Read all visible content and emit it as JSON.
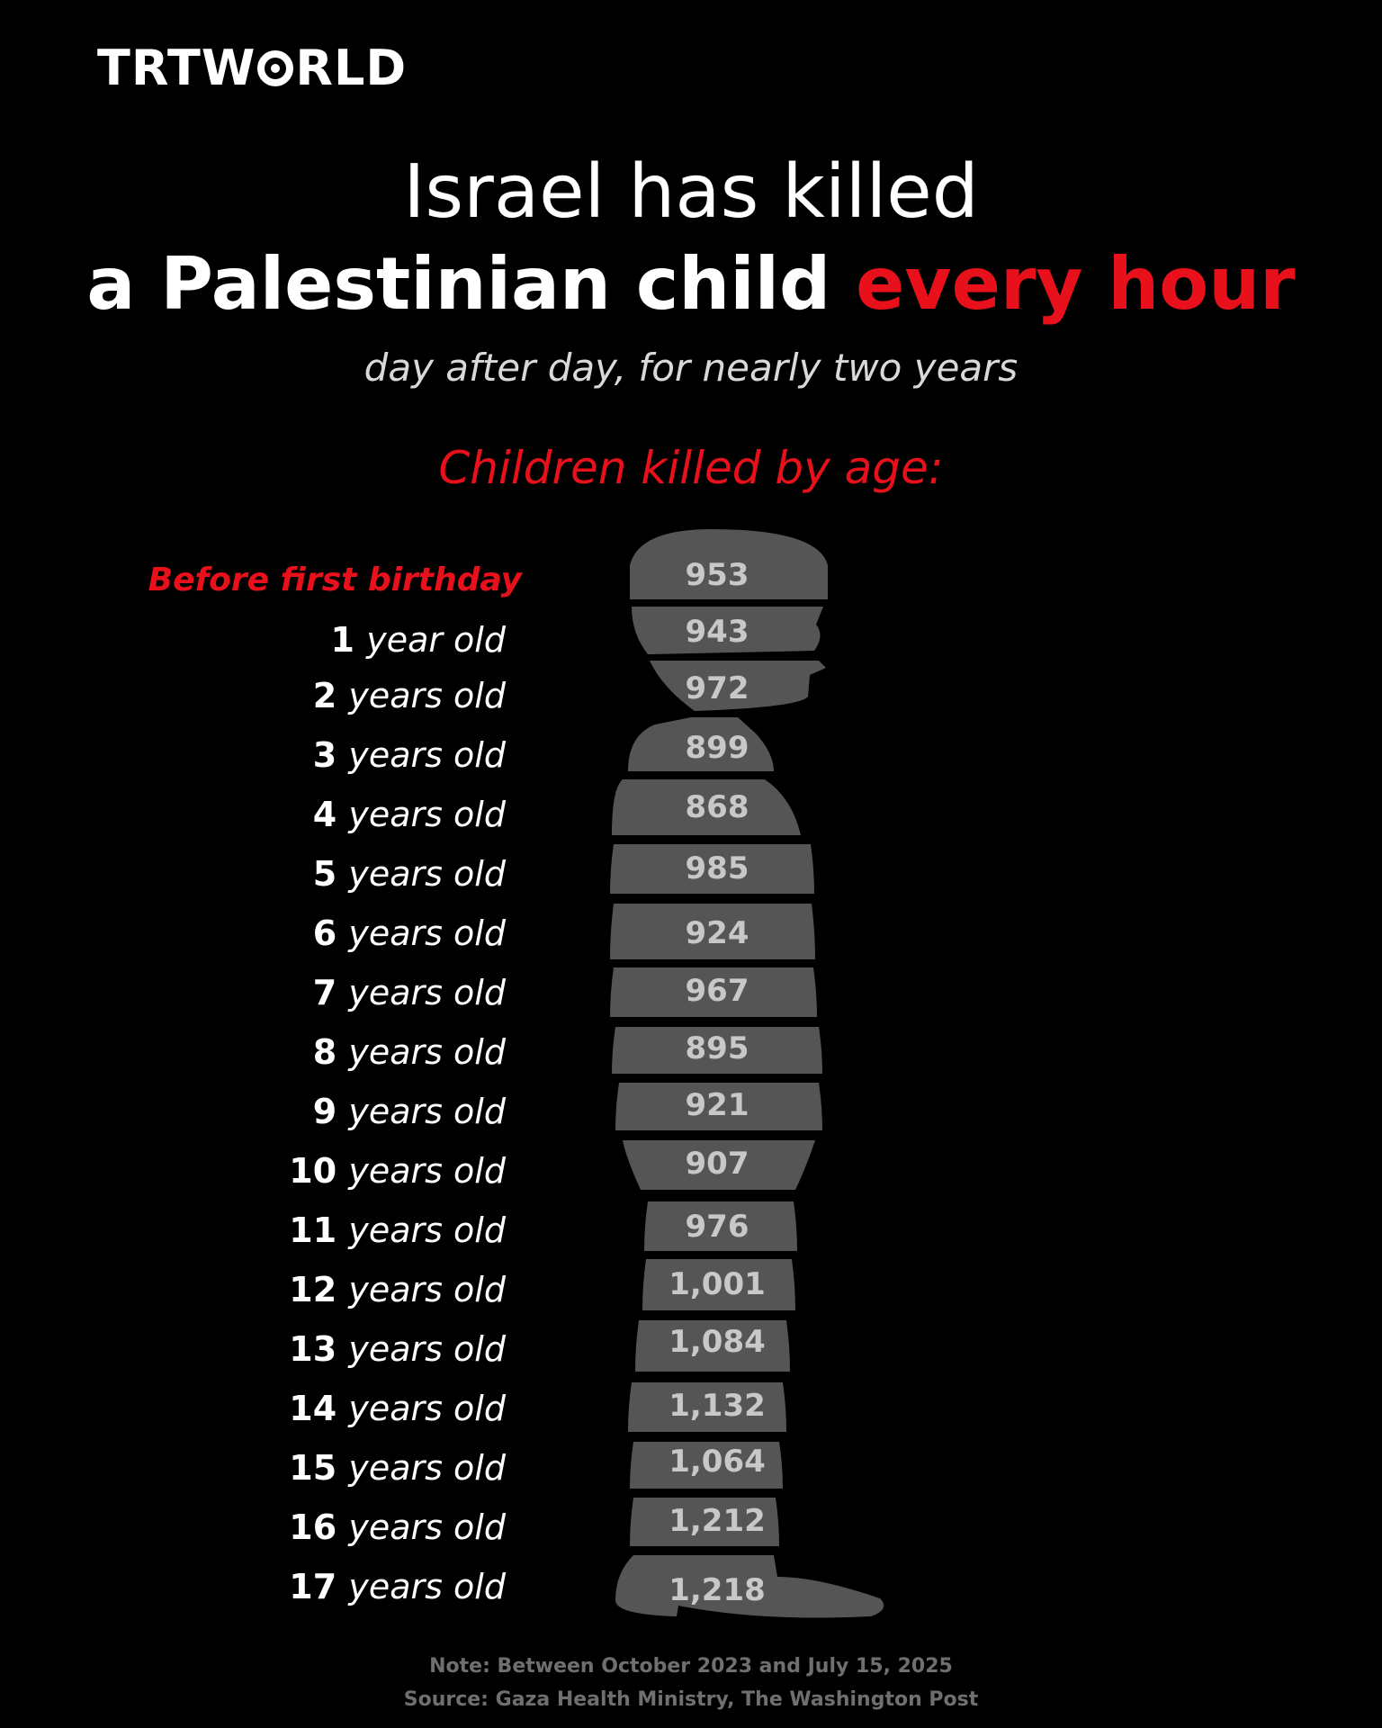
{
  "brand": {
    "logo_prefix": "TRTW",
    "logo_suffix": "RLD",
    "logo_alt": "TRTWORLD"
  },
  "headline": {
    "line1": "Israel has killed",
    "line2_start": "a Palestinian child ",
    "line2_accent": "every hour",
    "subtitle": "day after day, for nearly two years"
  },
  "colors": {
    "accent": "#e8111b",
    "background": "#000000",
    "silhouette": "#555555",
    "value_text": "#c8c8c8",
    "footnote": "#6f6f6f"
  },
  "chart_data": {
    "type": "bar",
    "title": "Children killed by age:",
    "categories": [
      "Before first birthday",
      "1 year old",
      "2 years old",
      "3 years old",
      "4 years old",
      "5 years old",
      "6 years old",
      "7 years old",
      "8 years old",
      "9 years old",
      "10 years old",
      "11 years old",
      "12 years old",
      "13 years old",
      "14 years old",
      "15 years old",
      "16 years old",
      "17 years old"
    ],
    "age_numbers": [
      "",
      "1",
      "2",
      "3",
      "4",
      "5",
      "6",
      "7",
      "8",
      "9",
      "10",
      "11",
      "12",
      "13",
      "14",
      "15",
      "16",
      "17"
    ],
    "age_units": [
      "Before first birthday",
      "year old",
      "years old",
      "years old",
      "years old",
      "years old",
      "years old",
      "years old",
      "years old",
      "years old",
      "years old",
      "years old",
      "years old",
      "years old",
      "years old",
      "years old",
      "years old",
      "years old"
    ],
    "values": [
      953,
      943,
      972,
      899,
      868,
      985,
      924,
      967,
      895,
      921,
      907,
      976,
      1001,
      1084,
      1132,
      1064,
      1212,
      1218
    ],
    "value_labels": [
      "953",
      "943",
      "972",
      "899",
      "868",
      "985",
      "924",
      "967",
      "895",
      "921",
      "907",
      "976",
      "1,001",
      "1,084",
      "1,132",
      "1,064",
      "1,212",
      "1,218"
    ]
  },
  "footer": {
    "note": "Note: Between October 2023 and July 15, 2025",
    "source": "Source: Gaza Health Ministry, The Washington Post"
  }
}
